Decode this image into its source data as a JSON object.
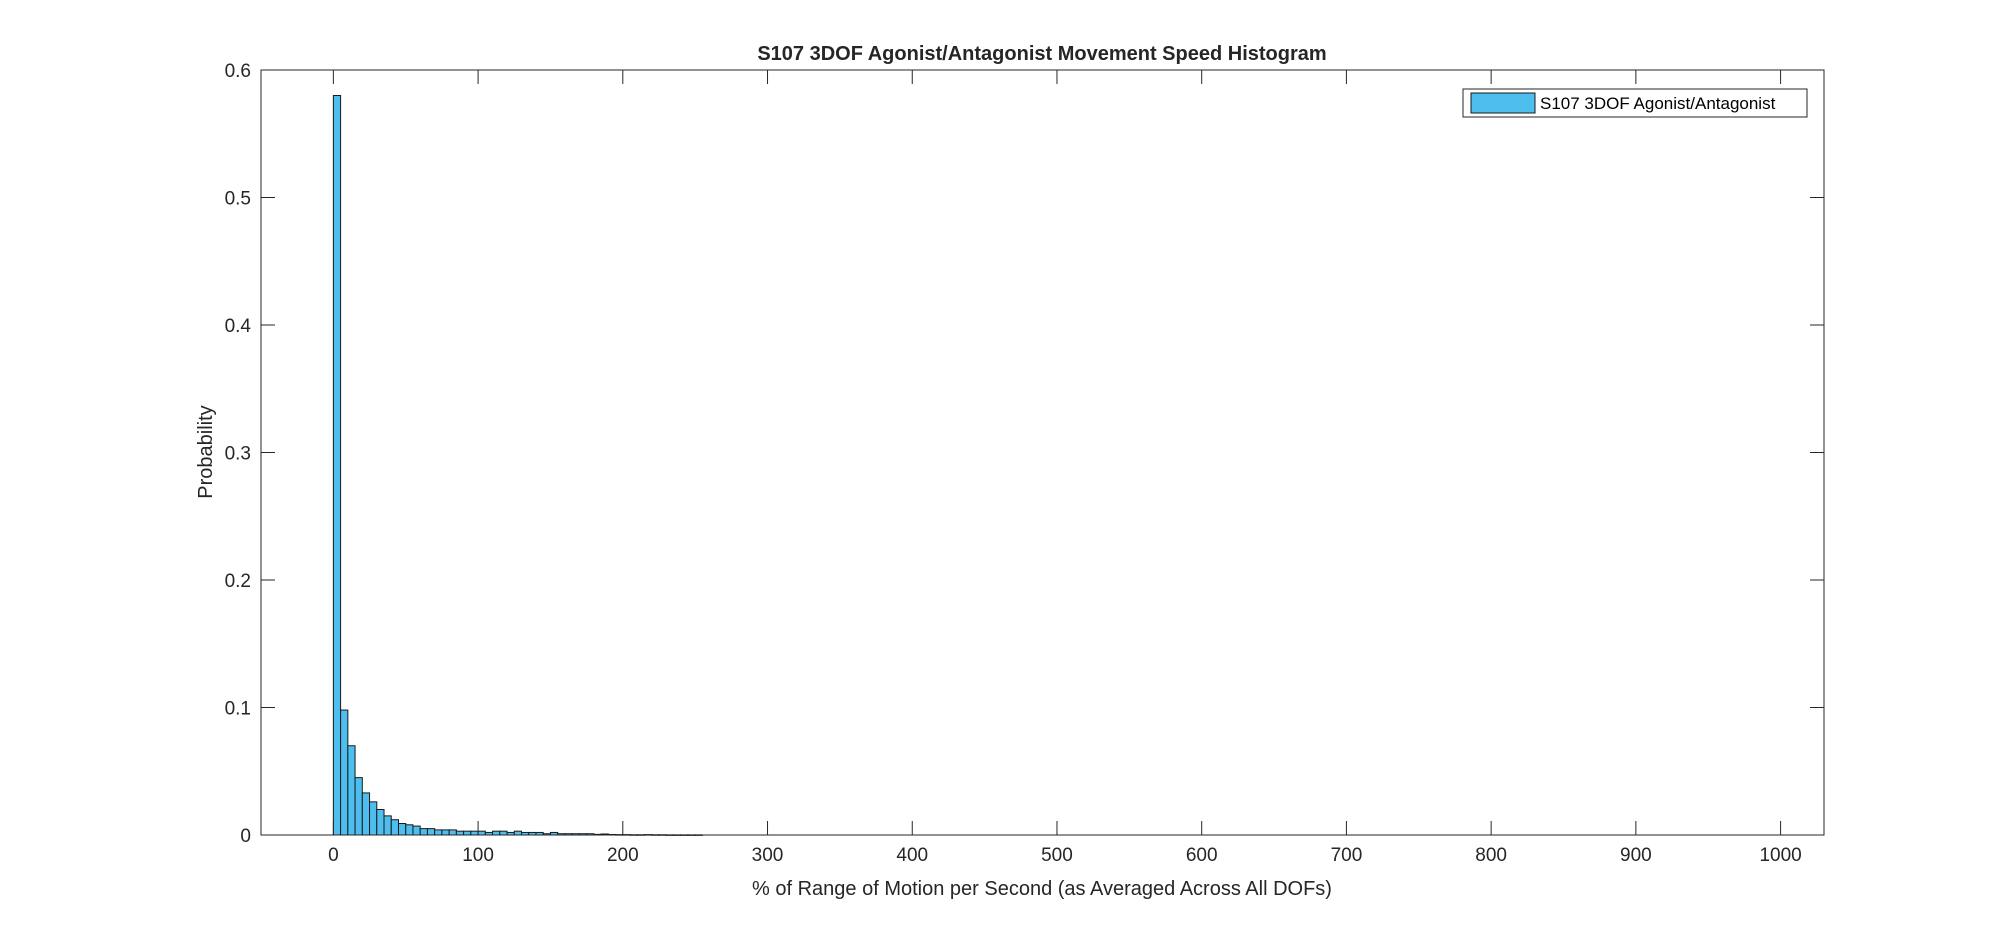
{
  "chart_data": {
    "type": "bar",
    "title": "S107 3DOF Agonist/Antagonist Movement Speed Histogram",
    "xlabel": "% of Range of Motion per Second (as Averaged Across All DOFs)",
    "ylabel": "Probability",
    "xlim": [
      -50,
      1030
    ],
    "ylim": [
      0,
      0.6
    ],
    "x_ticks": [
      0,
      100,
      200,
      300,
      400,
      500,
      600,
      700,
      800,
      900,
      1000
    ],
    "x_tick_labels": [
      "0",
      "100",
      "200",
      "300",
      "400",
      "500",
      "600",
      "700",
      "800",
      "900",
      "1000"
    ],
    "y_ticks": [
      0,
      0.1,
      0.2,
      0.3,
      0.4,
      0.5,
      0.6
    ],
    "y_tick_labels": [
      "0",
      "0.1",
      "0.2",
      "0.3",
      "0.4",
      "0.5",
      "0.6"
    ],
    "bin_width": 5,
    "first_bin_edge": 0,
    "values": [
      0.58,
      0.098,
      0.07,
      0.045,
      0.033,
      0.026,
      0.02,
      0.015,
      0.012,
      0.009,
      0.008,
      0.007,
      0.005,
      0.005,
      0.004,
      0.004,
      0.004,
      0.003,
      0.003,
      0.003,
      0.003,
      0.002,
      0.003,
      0.003,
      0.002,
      0.003,
      0.002,
      0.002,
      0.002,
      0.001,
      0.002,
      0.001,
      0.001,
      0.001,
      0.001,
      0.001,
      0.0005,
      0.0008,
      0.0004,
      0.0003,
      0.0003,
      0.0002,
      0.0002,
      0.0003,
      0.0002,
      0.0002,
      0.0001,
      0.0001,
      0.0001,
      0.0001,
      0.0001
    ],
    "series": [
      {
        "name": "S107 3DOF Agonist/Antagonist",
        "color": "#4dbeee"
      }
    ],
    "bar_fill": "#4dbeee",
    "bar_edge": "#1a1a1a",
    "grid": false,
    "box": true,
    "legend_position": "top-right"
  }
}
